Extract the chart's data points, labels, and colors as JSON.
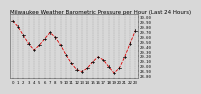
{
  "title": "Milwaukee Weather Barometric Pressure per Hour (Last 24 Hours)",
  "hours": [
    0,
    1,
    2,
    3,
    4,
    5,
    6,
    7,
    8,
    9,
    10,
    11,
    12,
    13,
    14,
    15,
    16,
    17,
    18,
    19,
    20,
    21,
    22,
    23
  ],
  "pressure": [
    29.92,
    29.8,
    29.62,
    29.45,
    29.32,
    29.42,
    29.55,
    29.68,
    29.58,
    29.42,
    29.22,
    29.05,
    28.92,
    28.88,
    28.95,
    29.08,
    29.18,
    29.12,
    28.98,
    28.85,
    28.95,
    29.18,
    29.45,
    29.72
  ],
  "ylim_min": 28.75,
  "ylim_max": 30.05,
  "ytick_min": 28.8,
  "ytick_max": 30.0,
  "ytick_step": 0.1,
  "line_color": "#dd0000",
  "marker_color": "#000000",
  "grid_color": "#888888",
  "bg_color": "#d8d8d8",
  "plot_bg": "#d8d8d8",
  "title_fontsize": 4.0,
  "tick_fontsize": 2.8,
  "ylabel_fontsize": 2.8
}
